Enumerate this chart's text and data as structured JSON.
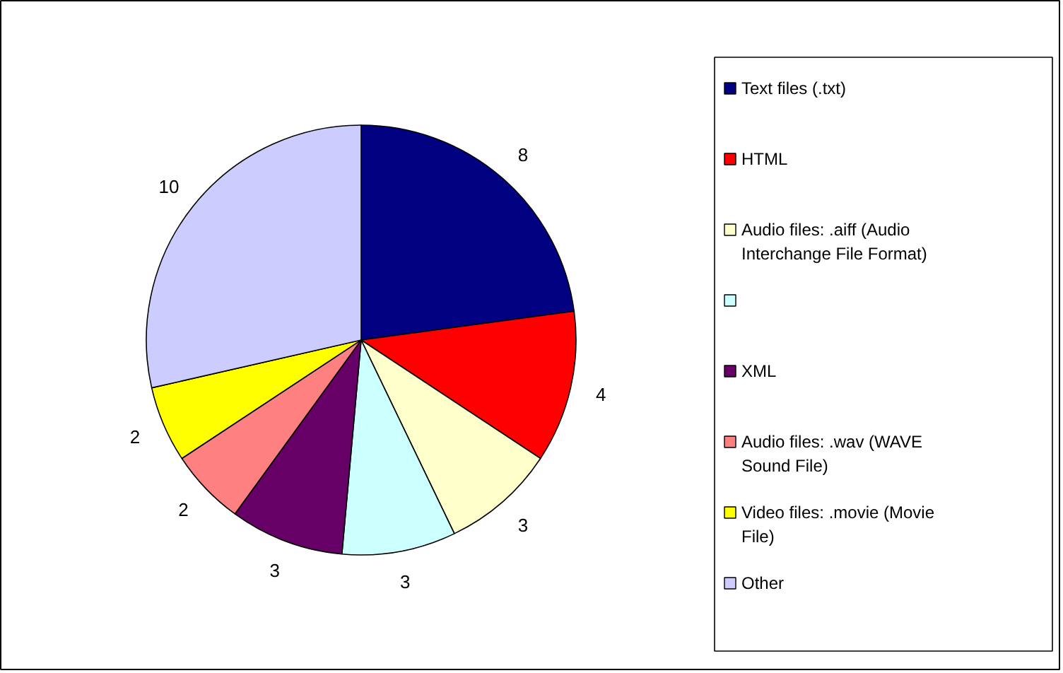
{
  "chart_data": {
    "type": "pie",
    "categories": [
      "Text files (.txt)",
      "HTML",
      "Audio files: .aiff (Audio Interchange File Format)",
      null,
      "XML",
      "Audio files: .wav (WAVE Sound File)",
      "Video files: .movie (Movie File)",
      "Other"
    ],
    "values": [
      8,
      4,
      3,
      3,
      3,
      2,
      2,
      10
    ],
    "colors": [
      "#000080",
      "#ff0000",
      "#ffffcc",
      "#ccffff",
      "#660066",
      "#ff8080",
      "#ffff00",
      "#ccccff"
    ],
    "data_labels": true,
    "legend": "right"
  }
}
